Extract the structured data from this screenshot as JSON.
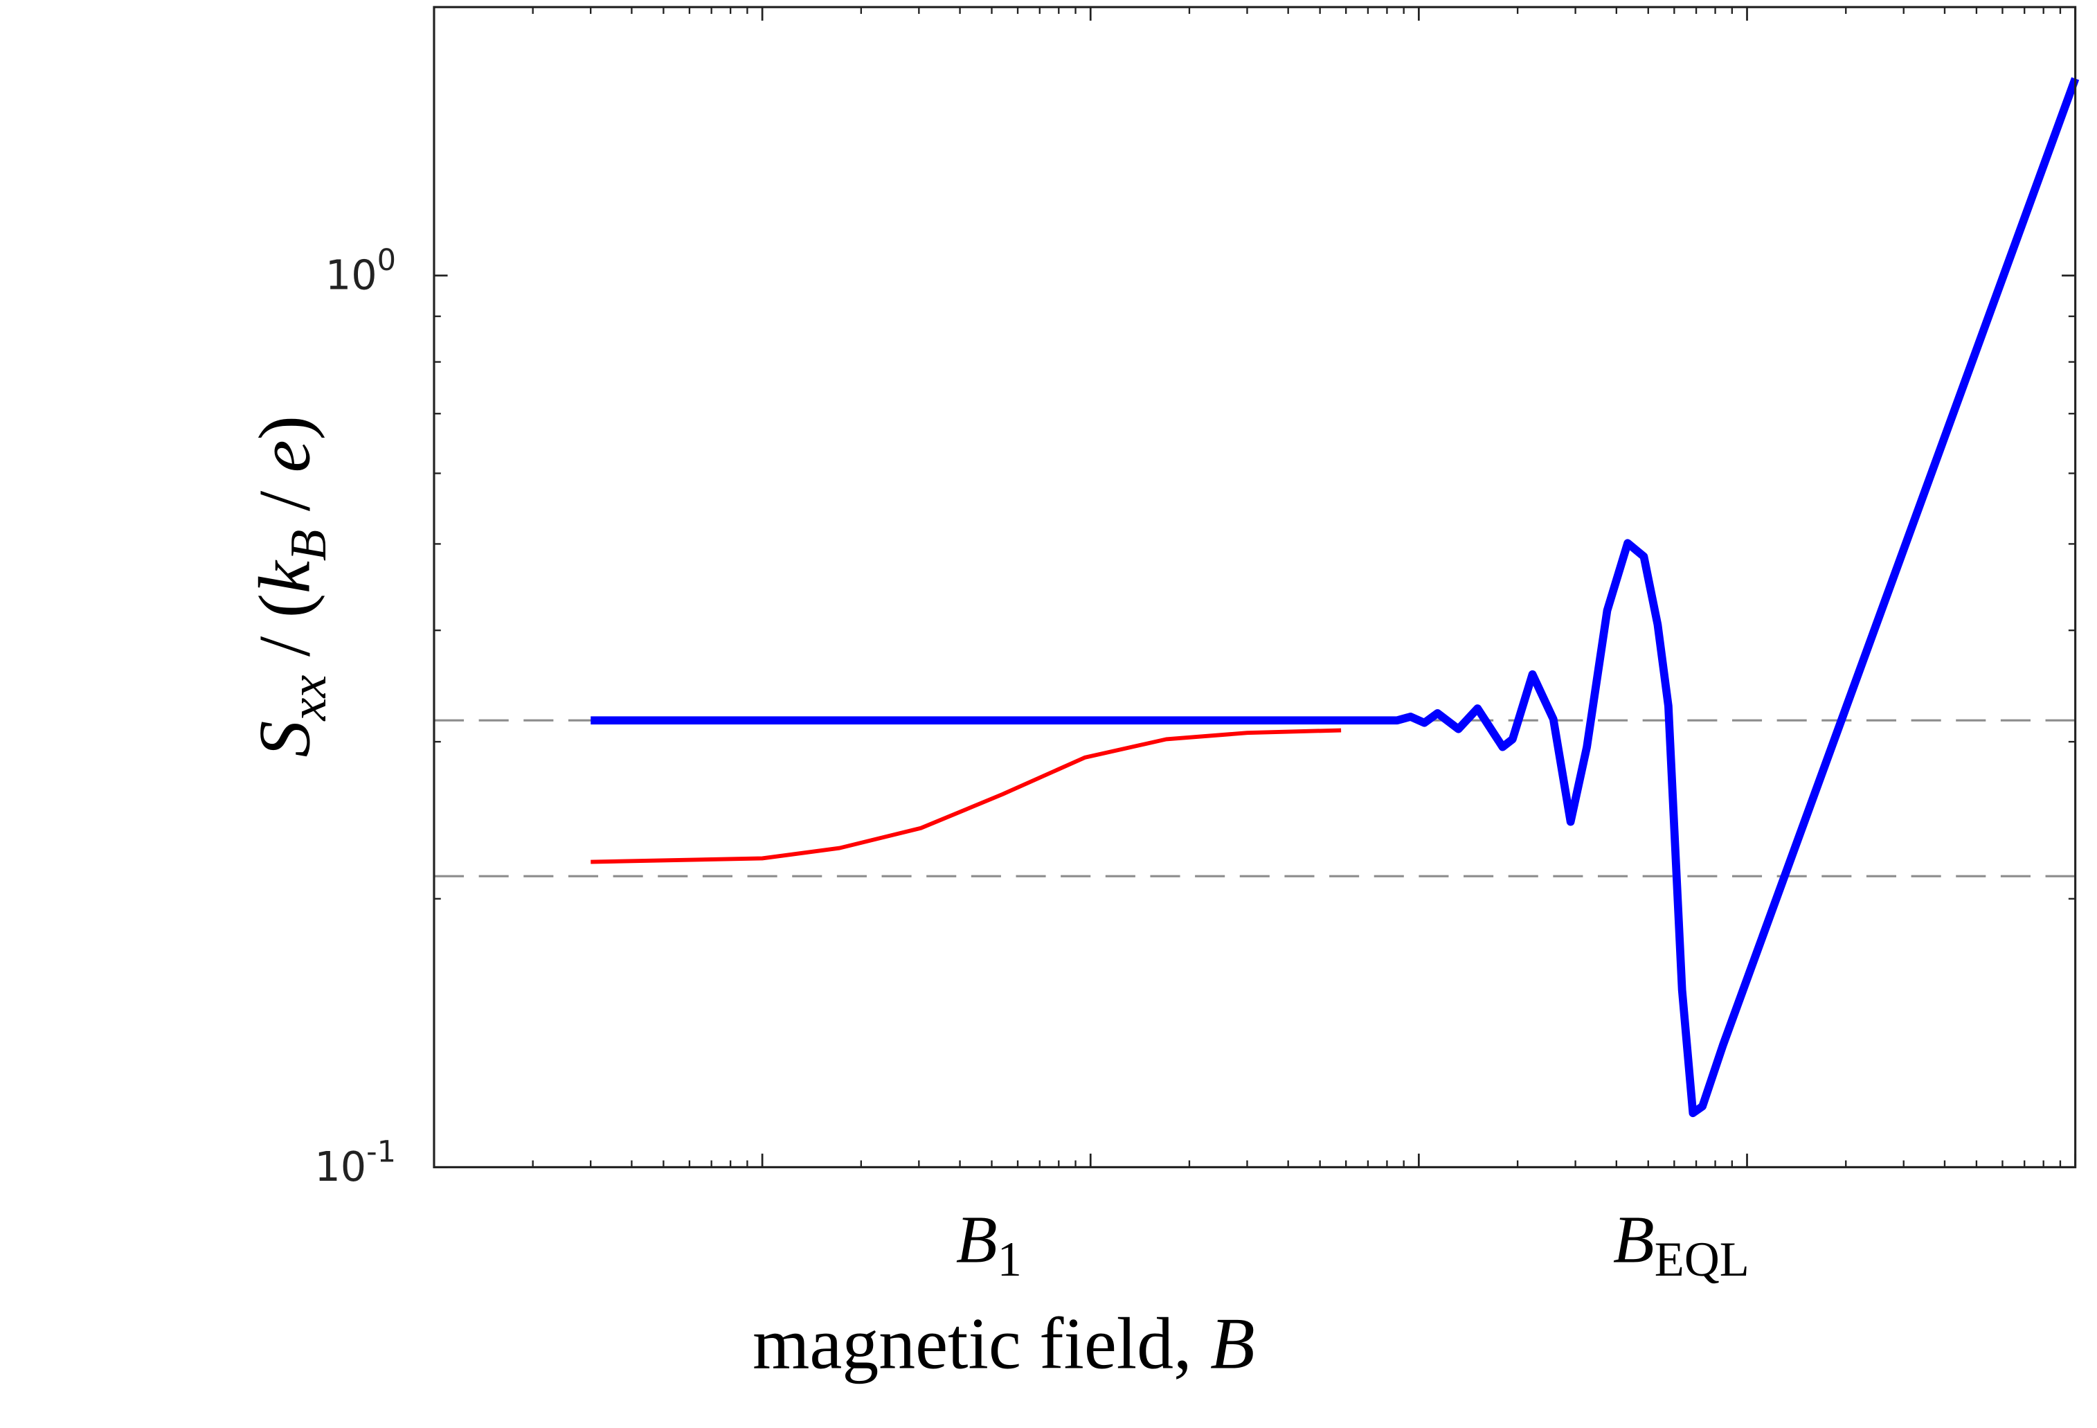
{
  "chart_data": {
    "type": "line",
    "xlog": true,
    "ylog": true,
    "xlim": [
      0.1,
      10000
    ],
    "ylim": [
      0.1,
      2
    ],
    "xticks": [
      0.1,
      1,
      10,
      100,
      1000,
      10000
    ],
    "show_xtick_labels": false,
    "yticks": [
      {
        "value": 0.1,
        "label": "10",
        "exponent": "-1"
      },
      {
        "value": 1,
        "label": "10",
        "exponent": "0"
      }
    ],
    "minor_ticks": true,
    "grid": false,
    "hlines": [
      0.317,
      0.212
    ],
    "hline_color": "#8c8c8c",
    "x_label": [
      {
        "text": "magnetic field, ",
        "style": "normal"
      },
      {
        "text": "B",
        "style": "italic"
      }
    ],
    "y_label": [
      {
        "text": "S",
        "style": "italic"
      },
      {
        "text": "xx",
        "style": "sub-italic"
      },
      {
        "text": " / (",
        "style": "normal"
      },
      {
        "text": "k",
        "style": "italic"
      },
      {
        "text": "B",
        "style": "sub-italic"
      },
      {
        "text": " / ",
        "style": "normal"
      },
      {
        "text": "e",
        "style": "italic"
      },
      {
        "text": ")",
        "style": "normal"
      }
    ],
    "annotations": [
      {
        "text": "B",
        "sub": "1",
        "x": 4.9
      },
      {
        "text": "B",
        "sub": "EQL",
        "x": 630
      }
    ],
    "series": [
      {
        "color": "#ff0000",
        "width": 3,
        "x": [
          0.3,
          1,
          1.72,
          3.04,
          5.4,
          9.6,
          17,
          30,
          58
        ],
        "values": [
          0.22,
          0.222,
          0.228,
          0.24,
          0.262,
          0.288,
          0.302,
          0.307,
          0.309
        ]
      },
      {
        "color": "#0000ff",
        "width": 6,
        "x": [
          0.3,
          86,
          94.4,
          104,
          114,
          132,
          151,
          180,
          193,
          222,
          257,
          290,
          325,
          375,
          433,
          485,
          534,
          576,
          634,
          684,
          731,
          844,
          10000
        ],
        "values": [
          0.317,
          0.317,
          0.32,
          0.315,
          0.323,
          0.31,
          0.327,
          0.296,
          0.302,
          0.357,
          0.318,
          0.244,
          0.296,
          0.421,
          0.501,
          0.484,
          0.406,
          0.329,
          0.158,
          0.115,
          0.117,
          0.137,
          1.663
        ]
      }
    ]
  }
}
